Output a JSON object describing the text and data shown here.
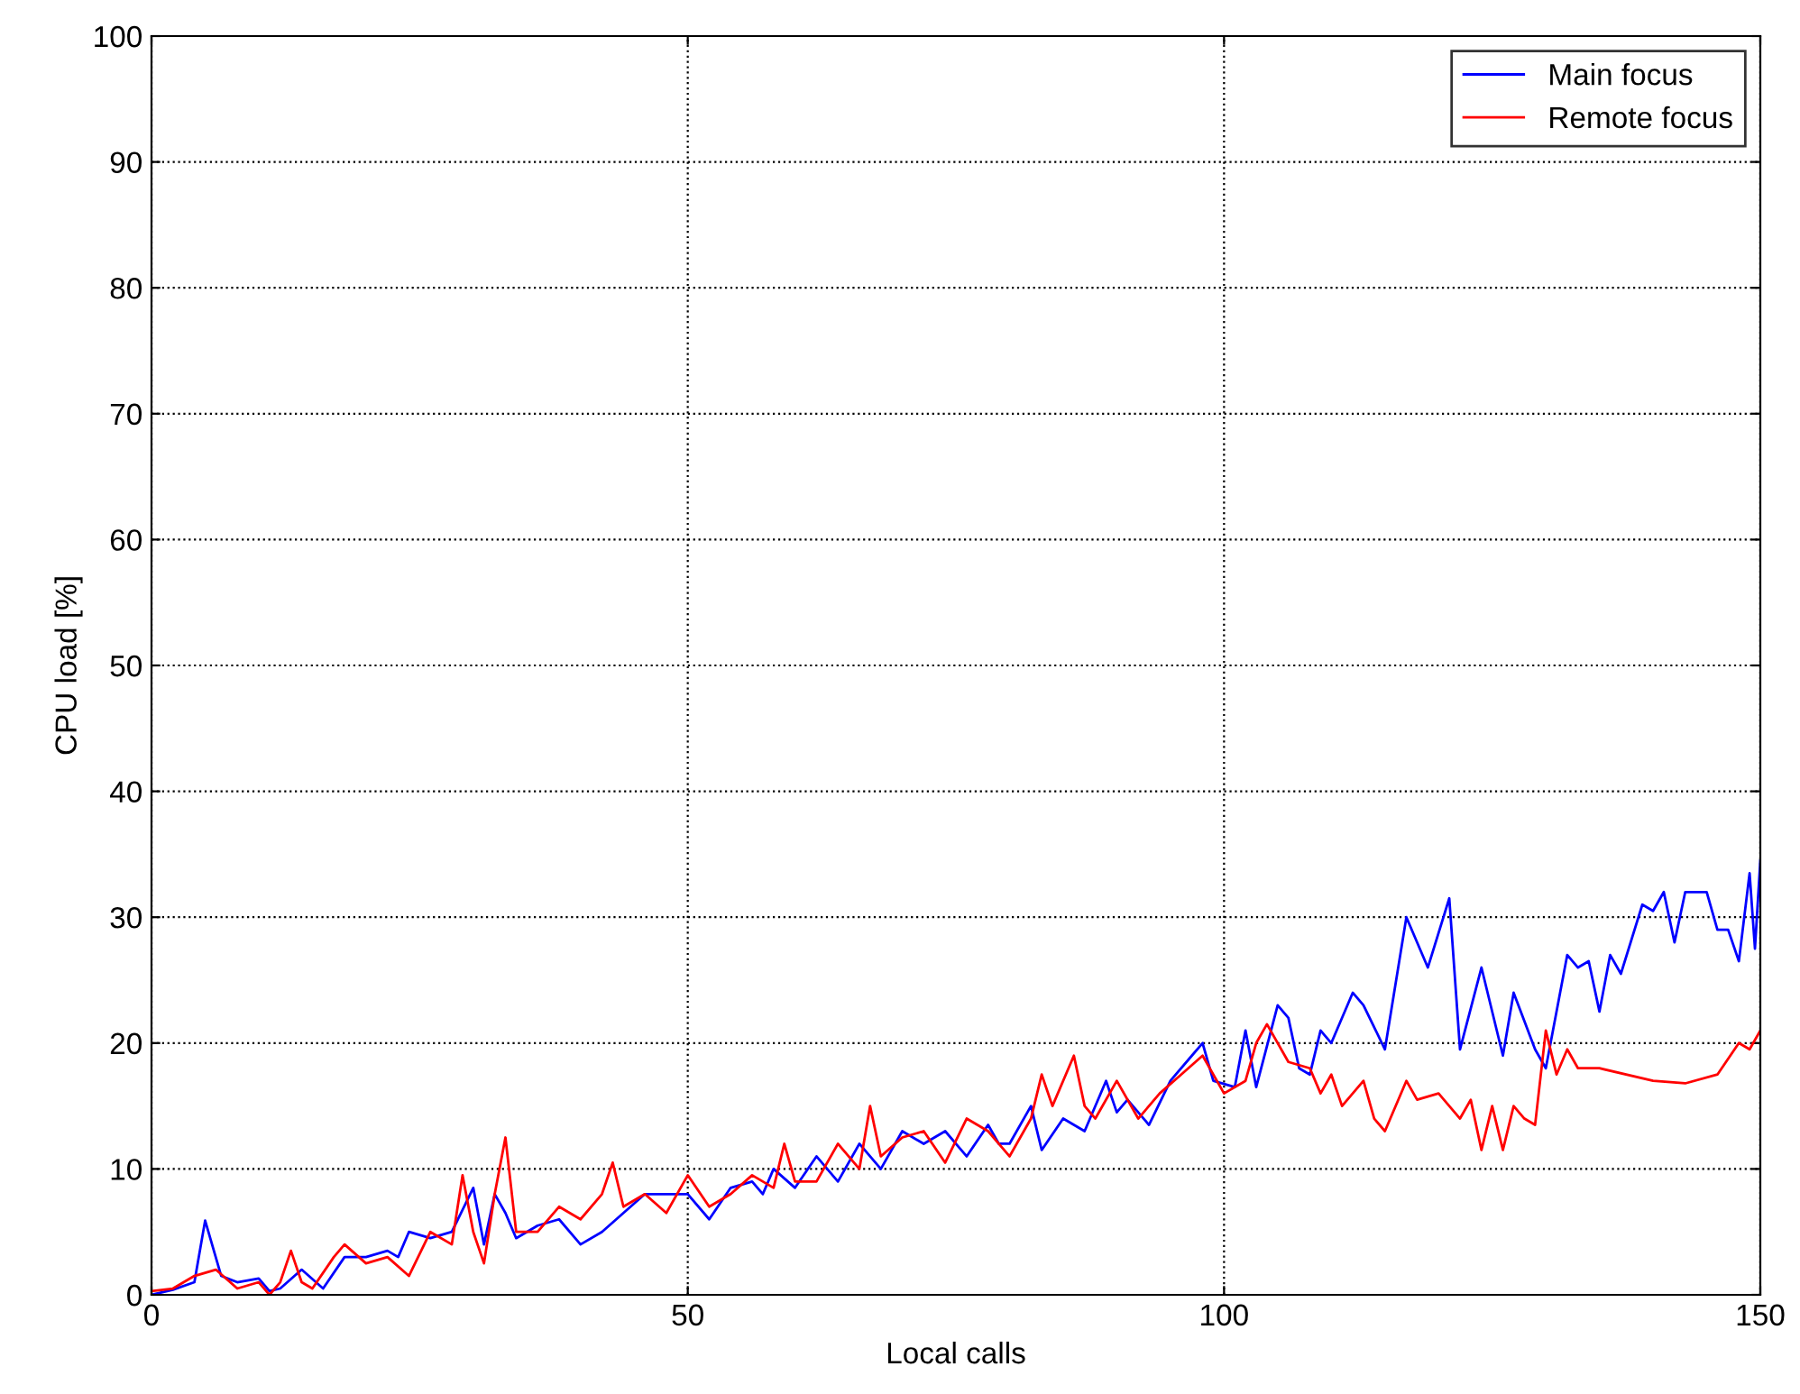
{
  "chart_data": {
    "type": "line",
    "xlabel": "Local calls",
    "ylabel": "CPU load [%]",
    "xlim": [
      0,
      150
    ],
    "xticks": [
      0,
      50,
      100,
      150
    ],
    "ylim": [
      0,
      100
    ],
    "yticks": [
      0,
      10,
      20,
      30,
      40,
      50,
      60,
      70,
      80,
      90,
      100
    ],
    "grid": true,
    "legend": "top right",
    "line_style": "solid",
    "series": [
      {
        "name": "Main focus",
        "color": "#0000ff",
        "x": [
          0,
          2,
          4,
          5,
          6.5,
          8,
          10,
          11,
          12,
          14,
          16,
          18,
          20,
          22,
          23,
          24,
          26,
          28,
          30,
          31,
          32,
          33,
          34,
          36,
          38,
          40,
          42,
          44,
          46,
          48,
          50,
          52,
          54,
          56,
          57,
          58,
          60,
          62,
          64,
          66,
          68,
          70,
          72,
          74,
          76,
          78,
          79,
          80,
          82,
          83,
          85,
          87,
          89,
          90,
          91,
          93,
          95,
          97,
          98,
          99,
          101,
          102,
          103,
          105,
          106,
          107,
          108,
          109,
          110,
          112,
          113,
          115,
          117,
          119,
          121,
          122,
          124,
          126,
          127,
          129,
          130,
          132,
          133,
          134,
          135,
          136,
          137,
          139,
          140,
          141,
          142,
          143,
          145,
          146,
          147,
          148,
          149,
          149.5,
          150
        ],
        "values": [
          0,
          0.4,
          1,
          5.9,
          1.5,
          1,
          1.3,
          0.3,
          0.5,
          2,
          0.5,
          3,
          3,
          3.5,
          3,
          5,
          4.5,
          5,
          8.5,
          4,
          8,
          6.5,
          4.5,
          5.5,
          6,
          4,
          5,
          6.5,
          8,
          8,
          8,
          6,
          8.5,
          9,
          8,
          10,
          8.5,
          11,
          9,
          12,
          10,
          13,
          12,
          13,
          11,
          13.5,
          12,
          12,
          15,
          11.5,
          14,
          13,
          17,
          14.5,
          15.5,
          13.5,
          17,
          19,
          20,
          17,
          16.5,
          21,
          16.5,
          23,
          22,
          18,
          17.5,
          21,
          20,
          24,
          23,
          19.5,
          30,
          26,
          31.5,
          19.5,
          26,
          19,
          24,
          19.5,
          18,
          27,
          26,
          26.5,
          22.5,
          27,
          25.5,
          31,
          30.5,
          32,
          28,
          32,
          32,
          29,
          29,
          26.5,
          33.5,
          27.5,
          34.5
        ]
      },
      {
        "name": "Remote focus",
        "color": "#ff0000",
        "x": [
          0,
          2,
          4,
          6,
          8,
          10,
          11,
          12,
          13,
          14,
          15,
          17,
          18,
          20,
          22,
          24,
          26,
          28,
          29,
          30,
          31,
          32,
          33,
          34,
          36,
          38,
          40,
          42,
          43,
          44,
          46,
          48,
          50,
          52,
          54,
          56,
          58,
          59,
          60,
          62,
          64,
          66,
          67,
          68,
          70,
          72,
          74,
          76,
          78,
          80,
          82,
          83,
          84,
          86,
          87,
          88,
          90,
          92,
          94,
          96,
          98,
          100,
          102,
          103,
          104,
          106,
          108,
          109,
          110,
          111,
          113,
          114,
          115,
          117,
          118,
          120,
          122,
          123,
          124,
          125,
          126,
          127,
          128,
          129,
          130,
          131,
          132,
          133,
          135,
          140,
          143,
          146,
          148,
          149,
          150
        ],
        "values": [
          0.3,
          0.5,
          1.5,
          2,
          0.5,
          1,
          0,
          1,
          3.5,
          1,
          0.5,
          3,
          4,
          2.5,
          3,
          1.5,
          5,
          4,
          9.5,
          5,
          2.5,
          8,
          12.5,
          5,
          5,
          7,
          6,
          8,
          10.5,
          7,
          8,
          6.5,
          9.5,
          7,
          8,
          9.5,
          8.5,
          12,
          9,
          9,
          12,
          10,
          15,
          11,
          12.5,
          13,
          10.5,
          14,
          13,
          11,
          14,
          17.5,
          15,
          19,
          15,
          14,
          17,
          14,
          16,
          17.5,
          19,
          16,
          17,
          20,
          21.5,
          18.5,
          18,
          16,
          17.5,
          15,
          17,
          14,
          13,
          17,
          15.5,
          16,
          14,
          15.5,
          11.5,
          15,
          11.5,
          15,
          14,
          13.5,
          21,
          17.5,
          19.5,
          18,
          18,
          17,
          16.8,
          17.5,
          20,
          19.5,
          21
        ]
      }
    ]
  }
}
